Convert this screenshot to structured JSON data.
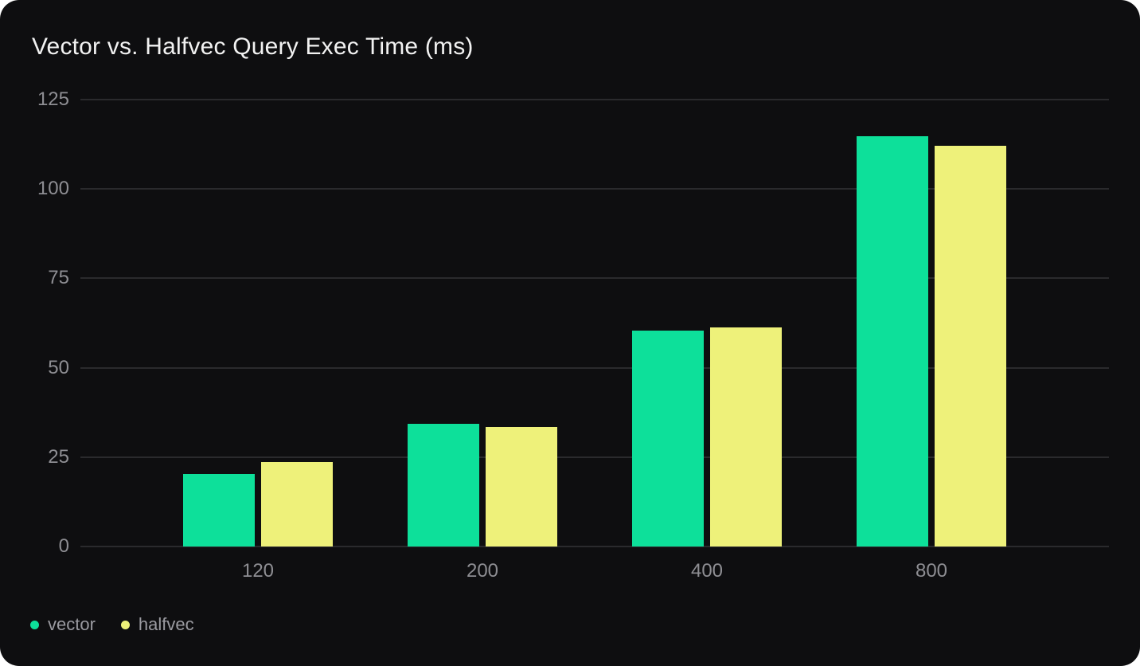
{
  "card": {
    "background": "#0e0e10",
    "page_background": "#ffffff"
  },
  "chart_data": {
    "type": "bar",
    "title": "Vector vs. Halfvec Query Exec Time (ms)",
    "categories": [
      "120",
      "200",
      "400",
      "800"
    ],
    "series": [
      {
        "name": "vector",
        "color": "#0de09a",
        "values": [
          20.3,
          34.3,
          60.3,
          114.8
        ]
      },
      {
        "name": "halfvec",
        "color": "#eef17a",
        "values": [
          23.6,
          33.4,
          61.2,
          112.0
        ]
      }
    ],
    "xlabel": "",
    "ylabel": "",
    "ylim": [
      0,
      125
    ],
    "yticks": [
      0,
      25,
      50,
      75,
      100,
      125
    ],
    "grid": true,
    "legend_position": "bottom-left",
    "colors": {
      "title_text": "#f2f2f2",
      "axis_label_text": "#8e8e93",
      "legend_text": "#9a9aa0",
      "gridline": "#2a2a2d"
    }
  }
}
